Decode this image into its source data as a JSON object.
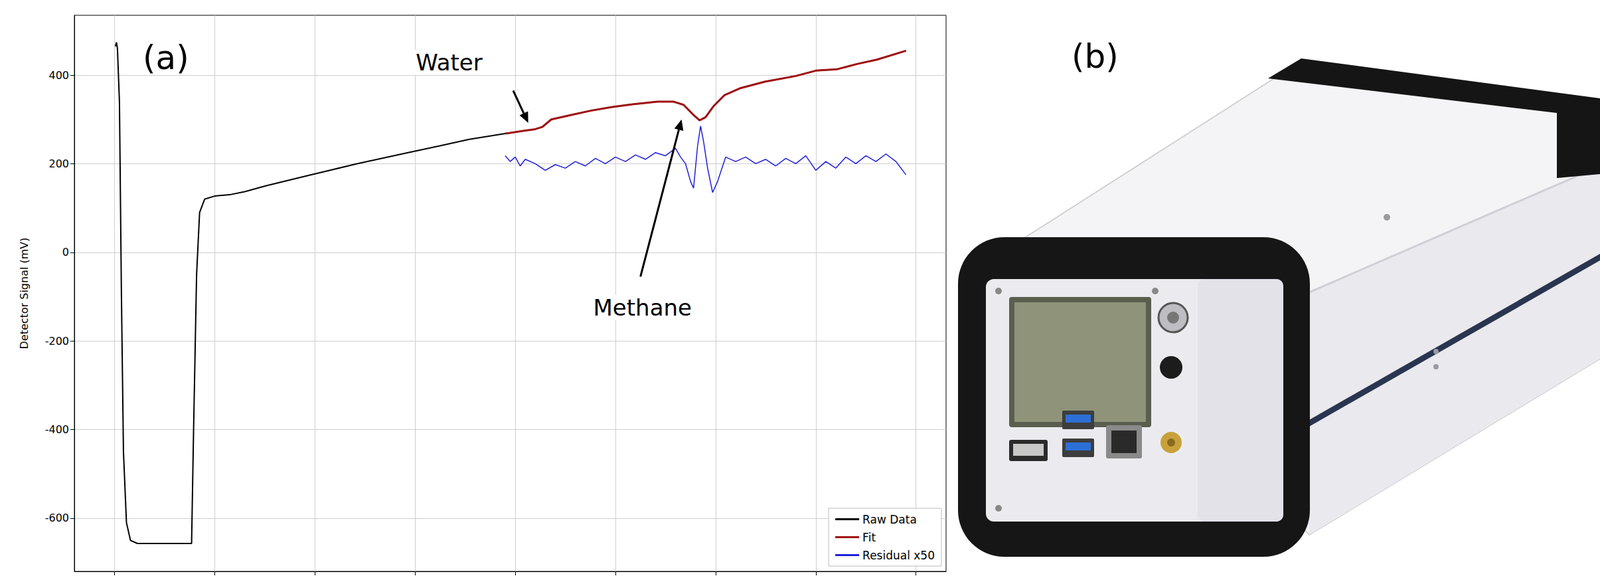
{
  "chart_data": {
    "type": "line",
    "panel_label": "(a)",
    "y_label": "Detector Signal (mV)",
    "xlim": [
      -0.4,
      8.3
    ],
    "xticks": [
      0,
      1,
      2,
      3,
      4,
      5,
      6,
      7,
      8
    ],
    "ylim": [
      -720,
      535
    ],
    "yticks": [
      -600,
      -400,
      -200,
      0,
      200,
      400
    ],
    "grid": true,
    "legend": "lower right",
    "tick_labels": "y",
    "series": [
      {
        "name": "Raw Data",
        "color": "#000000",
        "x": [
          0.01,
          0.02,
          0.03,
          0.05,
          0.07,
          0.09,
          0.12,
          0.16,
          0.23,
          0.49,
          0.77,
          0.79,
          0.82,
          0.85,
          0.9,
          1.0,
          1.15,
          1.3,
          1.51,
          1.91,
          2.42,
          2.93,
          3.24,
          3.54,
          3.9,
          4.1,
          4.2,
          4.27,
          4.36,
          4.56,
          4.76,
          4.97,
          5.17,
          5.42,
          5.58,
          5.68,
          5.78,
          5.84,
          5.9,
          5.98,
          6.09,
          6.24,
          6.49,
          6.8,
          7.0,
          7.21,
          7.41,
          7.61,
          7.9
        ],
        "values": [
          465,
          474,
          460,
          340,
          -100,
          -450,
          -610,
          -650,
          -657,
          -657,
          -657,
          -400,
          -50,
          90,
          120,
          127,
          130,
          137,
          150,
          172,
          200,
          225,
          240,
          255,
          268,
          275,
          278,
          283,
          300,
          310,
          320,
          328,
          334,
          340,
          340,
          333,
          310,
          298,
          305,
          330,
          355,
          370,
          385,
          398,
          410,
          413,
          425,
          435,
          455
        ]
      },
      {
        "name": "Fit",
        "color": "#a01010",
        "x": [
          3.9,
          4.1,
          4.2,
          4.27,
          4.36,
          4.56,
          4.76,
          4.97,
          5.17,
          5.42,
          5.58,
          5.68,
          5.78,
          5.84,
          5.9,
          5.98,
          6.09,
          6.24,
          6.49,
          6.8,
          7.0,
          7.21,
          7.41,
          7.61,
          7.9
        ],
        "values": [
          268,
          275,
          278,
          283,
          300,
          310,
          320,
          328,
          334,
          340,
          340,
          333,
          310,
          298,
          305,
          330,
          355,
          370,
          385,
          398,
          410,
          413,
          425,
          435,
          455
        ]
      },
      {
        "name": "Residual x50",
        "color": "#1f1fdd",
        "x": [
          3.9,
          3.95,
          4.0,
          4.05,
          4.1,
          4.2,
          4.3,
          4.4,
          4.5,
          4.6,
          4.7,
          4.8,
          4.9,
          5.0,
          5.1,
          5.2,
          5.3,
          5.4,
          5.5,
          5.6,
          5.65,
          5.7,
          5.75,
          5.78,
          5.82,
          5.85,
          5.88,
          5.92,
          5.97,
          6.02,
          6.1,
          6.2,
          6.3,
          6.4,
          6.5,
          6.6,
          6.7,
          6.8,
          6.9,
          7.0,
          7.1,
          7.2,
          7.3,
          7.4,
          7.5,
          7.6,
          7.7,
          7.8,
          7.9
        ],
        "values": [
          218,
          205,
          215,
          195,
          210,
          200,
          185,
          198,
          190,
          205,
          195,
          212,
          200,
          215,
          205,
          220,
          210,
          225,
          218,
          235,
          215,
          200,
          160,
          145,
          240,
          285,
          250,
          190,
          135,
          160,
          215,
          205,
          215,
          200,
          210,
          195,
          212,
          200,
          218,
          185,
          205,
          190,
          215,
          200,
          218,
          205,
          222,
          205,
          175
        ]
      }
    ],
    "annotations": [
      {
        "text": "Water",
        "x": 3.34,
        "y": 429,
        "arrow_from": [
          3.98,
          365
        ],
        "arrow_to": [
          4.13,
          292
        ]
      },
      {
        "text": "Methane",
        "x": 5.27,
        "y": -124,
        "arrow_from": [
          5.25,
          -55
        ],
        "arrow_to": [
          5.66,
          300
        ]
      }
    ]
  },
  "panel_b": {
    "label": "(b)"
  }
}
